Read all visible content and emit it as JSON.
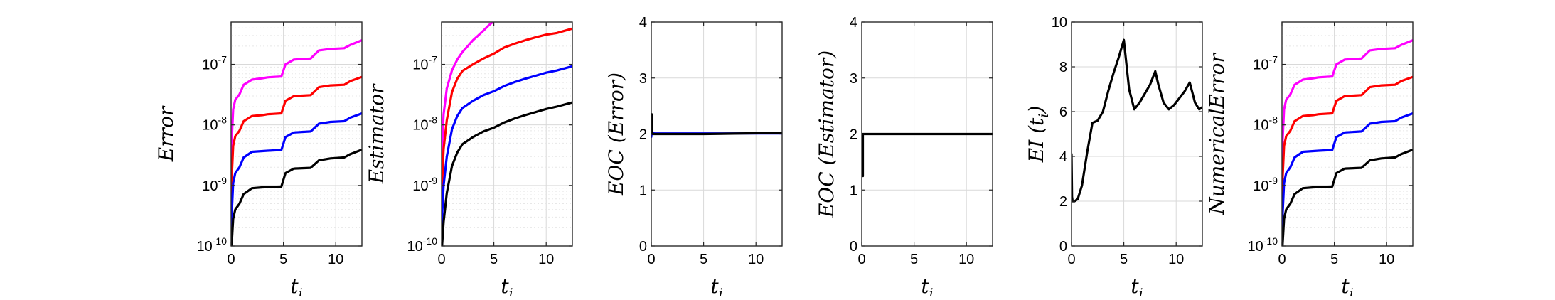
{
  "chart_data": [
    {
      "type": "line",
      "xlabel": "t",
      "xlabel_sub": "i",
      "ylabel": "Error",
      "yscale": "log",
      "xlim": [
        0,
        12.5
      ],
      "ylim": [
        1e-10,
        5e-07
      ],
      "xticks": [
        0,
        5,
        10
      ],
      "yticks": [
        1e-10,
        1e-09,
        1e-08,
        1e-07
      ],
      "ytick_labels": [
        "10-10",
        "10-9",
        "10-8",
        "10-7"
      ],
      "grid": true,
      "series": [
        {
          "color": "#ff00ff",
          "x": [
            0,
            0.05,
            0.2,
            0.4,
            0.8,
            1.2,
            2.0,
            3.0,
            3.5,
            4.8,
            5.2,
            6.0,
            7.6,
            8.4,
            9.5,
            10.8,
            11.4,
            12.5
          ],
          "y": [
            1e-10,
            5e-09,
            1.8e-08,
            2.6e-08,
            3.2e-08,
            4.6e-08,
            5.6e-08,
            5.9e-08,
            6.1e-08,
            6.3e-08,
            1e-07,
            1.2e-07,
            1.25e-07,
            1.7e-07,
            1.8e-07,
            1.85e-07,
            2.1e-07,
            2.5e-07
          ]
        },
        {
          "color": "#ff0000",
          "x": [
            0,
            0.05,
            0.2,
            0.4,
            0.8,
            1.2,
            2.0,
            3.0,
            3.5,
            4.8,
            5.2,
            6.0,
            7.6,
            8.4,
            9.5,
            10.8,
            11.4,
            12.5
          ],
          "y": [
            1e-10,
            1.2e-09,
            4.5e-09,
            6.5e-09,
            8e-09,
            1.15e-08,
            1.4e-08,
            1.45e-08,
            1.5e-08,
            1.55e-08,
            2.5e-08,
            3e-08,
            3.1e-08,
            4.2e-08,
            4.5e-08,
            4.6e-08,
            5.3e-08,
            6.2e-08
          ]
        },
        {
          "color": "#0000ff",
          "x": [
            0,
            0.05,
            0.2,
            0.4,
            0.8,
            1.2,
            2.0,
            3.0,
            3.5,
            4.8,
            5.2,
            6.0,
            7.6,
            8.4,
            9.5,
            10.8,
            11.4,
            12.5
          ],
          "y": [
            1e-10,
            3e-10,
            1.1e-09,
            1.6e-09,
            2e-09,
            2.9e-09,
            3.6e-09,
            3.7e-09,
            3.75e-09,
            3.85e-09,
            6.3e-09,
            7.5e-09,
            7.8e-09,
            1.05e-08,
            1.12e-08,
            1.15e-08,
            1.32e-08,
            1.55e-08
          ]
        },
        {
          "color": "#000000",
          "x": [
            0,
            0.05,
            0.2,
            0.4,
            0.8,
            1.2,
            2.0,
            3.0,
            3.5,
            4.8,
            5.2,
            6.0,
            7.6,
            8.4,
            9.5,
            10.8,
            11.4,
            12.5
          ],
          "y": [
            1e-10,
            1e-10,
            2.8e-10,
            4e-10,
            5e-10,
            7.2e-10,
            9e-10,
            9.3e-10,
            9.4e-10,
            9.6e-10,
            1.6e-09,
            1.9e-09,
            1.95e-09,
            2.6e-09,
            2.8e-09,
            2.9e-09,
            3.3e-09,
            3.9e-09
          ]
        }
      ]
    },
    {
      "type": "line",
      "xlabel": "t",
      "xlabel_sub": "i",
      "ylabel": "Estimator",
      "yscale": "log",
      "xlim": [
        0,
        12.5
      ],
      "ylim": [
        1e-10,
        5e-07
      ],
      "xticks": [
        0,
        5,
        10
      ],
      "yticks": [
        1e-10,
        1e-09,
        1e-08,
        1e-07
      ],
      "ytick_labels": [
        "10-10",
        "10-9",
        "10-8",
        "10-7"
      ],
      "grid": true,
      "series": [
        {
          "color": "#ff00ff",
          "x": [
            0,
            0.05,
            0.2,
            0.5,
            1.0,
            1.5,
            2.0,
            2.5,
            3.0,
            3.5,
            4.0,
            4.5,
            4.9
          ],
          "y": [
            1e-10,
            4e-09,
            1.5e-08,
            4e-08,
            8e-08,
            1.2e-07,
            1.6e-07,
            2e-07,
            2.5e-07,
            3e-07,
            3.6e-07,
            4.4e-07,
            5e-07
          ]
        },
        {
          "color": "#ff0000",
          "x": [
            0,
            0.05,
            0.2,
            0.5,
            1.0,
            1.5,
            2.0,
            3.0,
            4.0,
            5.0,
            6.0,
            7.0,
            8.0,
            9.0,
            10.0,
            11.0,
            12.5
          ],
          "y": [
            1e-10,
            1e-09,
            4e-09,
            1.2e-08,
            3.5e-08,
            5.8e-08,
            7.8e-08,
            1e-07,
            1.25e-07,
            1.5e-07,
            1.9e-07,
            2.2e-07,
            2.5e-07,
            2.8e-07,
            3.1e-07,
            3.3e-07,
            3.9e-07
          ]
        },
        {
          "color": "#0000ff",
          "x": [
            0,
            0.05,
            0.2,
            0.5,
            1.0,
            1.5,
            2.0,
            3.0,
            4.0,
            5.0,
            6.0,
            7.0,
            8.0,
            9.0,
            10.0,
            11.0,
            12.5
          ],
          "y": [
            1e-10,
            3e-10,
            1e-09,
            3e-09,
            8.5e-09,
            1.4e-08,
            1.9e-08,
            2.5e-08,
            3.1e-08,
            3.6e-08,
            4.4e-08,
            5.1e-08,
            5.8e-08,
            6.5e-08,
            7.3e-08,
            7.9e-08,
            9.3e-08
          ]
        },
        {
          "color": "#000000",
          "x": [
            0,
            0.05,
            0.2,
            0.5,
            1.0,
            1.5,
            2.0,
            3.0,
            4.0,
            5.0,
            6.0,
            7.0,
            8.0,
            9.0,
            10.0,
            11.0,
            12.5
          ],
          "y": [
            1e-10,
            1e-10,
            2.5e-10,
            7.5e-10,
            2.1e-09,
            3.5e-09,
            4.8e-09,
            6.3e-09,
            7.8e-09,
            9e-09,
            1.1e-08,
            1.28e-08,
            1.45e-08,
            1.63e-08,
            1.83e-08,
            2e-08,
            2.35e-08
          ]
        }
      ]
    },
    {
      "type": "line",
      "xlabel": "t",
      "xlabel_sub": "i",
      "ylabel": "EOC (Error)",
      "yscale": "linear",
      "xlim": [
        0,
        12.5
      ],
      "ylim": [
        0,
        4
      ],
      "xticks": [
        0,
        5,
        10
      ],
      "yticks": [
        0,
        1,
        2,
        3,
        4
      ],
      "ytick_labels": [
        "0",
        "1",
        "2",
        "3",
        "4"
      ],
      "grid": true,
      "series": [
        {
          "color": "#0000ff",
          "x": [
            0,
            0.05,
            0.15,
            0.3,
            12.5
          ],
          "y": [
            1.95,
            2.05,
            2.02,
            2.01,
            2.01
          ]
        },
        {
          "color": "#000000",
          "x": [
            0,
            0.05,
            0.1,
            0.15,
            0.3,
            1.0,
            5.0,
            12.5
          ],
          "y": [
            2.35,
            2.35,
            2.02,
            2.0,
            2.0,
            2.0,
            2.0,
            2.02
          ]
        }
      ]
    },
    {
      "type": "line",
      "xlabel": "t",
      "xlabel_sub": "i",
      "ylabel": "EOC (Estimator)",
      "yscale": "linear",
      "xlim": [
        0,
        12.5
      ],
      "ylim": [
        0,
        4
      ],
      "xticks": [
        0,
        5,
        10
      ],
      "yticks": [
        0,
        1,
        2,
        3,
        4
      ],
      "ytick_labels": [
        "0",
        "1",
        "2",
        "3",
        "4"
      ],
      "grid": true,
      "series": [
        {
          "color": "#000000",
          "x": [
            0.1,
            0.1,
            0.12,
            0.2,
            1.0,
            12.5
          ],
          "y": [
            1.25,
            2.0,
            2.0,
            2.0,
            2.0,
            2.0
          ]
        }
      ]
    },
    {
      "type": "line",
      "xlabel": "t",
      "xlabel_sub": "i",
      "ylabel": "EI (t",
      "ylabel_sub": "i",
      "ylabel_suffix": ")",
      "yscale": "linear",
      "xlim": [
        0,
        12.5
      ],
      "ylim": [
        0,
        10
      ],
      "xticks": [
        0,
        5,
        10
      ],
      "yticks": [
        0,
        2,
        4,
        6,
        8,
        10
      ],
      "ytick_labels": [
        "0",
        "2",
        "4",
        "6",
        "8",
        "10"
      ],
      "grid": true,
      "series": [
        {
          "color": "#000000",
          "x": [
            0,
            0.05,
            0.1,
            0.3,
            0.6,
            1.0,
            1.5,
            2.0,
            2.5,
            3.0,
            3.5,
            4.0,
            4.5,
            5.0,
            5.5,
            6.0,
            6.5,
            7.0,
            7.5,
            8.0,
            8.3,
            8.8,
            9.3,
            9.8,
            10.3,
            10.8,
            11.3,
            11.8,
            12.2,
            12.5
          ],
          "y": [
            4.1,
            2.2,
            2.0,
            2.0,
            2.1,
            2.7,
            4.2,
            5.5,
            5.6,
            6.0,
            6.9,
            7.7,
            8.4,
            9.2,
            7.0,
            6.1,
            6.4,
            6.8,
            7.2,
            7.8,
            7.2,
            6.4,
            6.1,
            6.3,
            6.6,
            6.9,
            7.3,
            6.4,
            6.1,
            6.2
          ]
        }
      ]
    },
    {
      "type": "line",
      "xlabel": "t",
      "xlabel_sub": "i",
      "ylabel": "NumericalError",
      "yscale": "log",
      "xlim": [
        0,
        12.5
      ],
      "ylim": [
        1e-10,
        5e-07
      ],
      "xticks": [
        0,
        5,
        10
      ],
      "yticks": [
        1e-10,
        1e-09,
        1e-08,
        1e-07
      ],
      "ytick_labels": [
        "10-10",
        "10-9",
        "10-8",
        "10-7"
      ],
      "grid": true,
      "series": [
        {
          "color": "#ff00ff",
          "x": [
            0,
            0.05,
            0.2,
            0.4,
            0.8,
            1.2,
            2.0,
            3.0,
            3.5,
            4.8,
            5.2,
            6.0,
            7.6,
            8.4,
            9.5,
            10.8,
            11.4,
            12.5
          ],
          "y": [
            1e-10,
            5e-09,
            1.8e-08,
            2.6e-08,
            3.2e-08,
            4.6e-08,
            5.6e-08,
            5.9e-08,
            6.1e-08,
            6.3e-08,
            1e-07,
            1.2e-07,
            1.25e-07,
            1.7e-07,
            1.8e-07,
            1.85e-07,
            2.1e-07,
            2.5e-07
          ]
        },
        {
          "color": "#ff0000",
          "x": [
            0,
            0.05,
            0.2,
            0.4,
            0.8,
            1.2,
            2.0,
            3.0,
            3.5,
            4.8,
            5.2,
            6.0,
            7.6,
            8.4,
            9.5,
            10.8,
            11.4,
            12.5
          ],
          "y": [
            1e-10,
            1.2e-09,
            4.5e-09,
            6.5e-09,
            8e-09,
            1.15e-08,
            1.4e-08,
            1.45e-08,
            1.5e-08,
            1.55e-08,
            2.5e-08,
            3e-08,
            3.1e-08,
            4.2e-08,
            4.5e-08,
            4.6e-08,
            5.3e-08,
            6.2e-08
          ]
        },
        {
          "color": "#0000ff",
          "x": [
            0,
            0.05,
            0.2,
            0.4,
            0.8,
            1.2,
            2.0,
            3.0,
            3.5,
            4.8,
            5.2,
            6.0,
            7.6,
            8.4,
            9.5,
            10.8,
            11.4,
            12.5
          ],
          "y": [
            1e-10,
            3e-10,
            1.1e-09,
            1.6e-09,
            2e-09,
            2.9e-09,
            3.6e-09,
            3.7e-09,
            3.75e-09,
            3.85e-09,
            6.3e-09,
            7.5e-09,
            7.8e-09,
            1.05e-08,
            1.12e-08,
            1.15e-08,
            1.32e-08,
            1.55e-08
          ]
        },
        {
          "color": "#000000",
          "x": [
            0,
            0.05,
            0.2,
            0.4,
            0.8,
            1.2,
            2.0,
            3.0,
            3.5,
            4.8,
            5.2,
            6.0,
            7.6,
            8.4,
            9.5,
            10.8,
            11.4,
            12.5
          ],
          "y": [
            1e-10,
            1e-10,
            2.8e-10,
            4e-10,
            5e-10,
            7.2e-10,
            9e-10,
            9.3e-10,
            9.4e-10,
            9.6e-10,
            1.6e-09,
            1.9e-09,
            1.95e-09,
            2.6e-09,
            2.8e-09,
            2.9e-09,
            3.3e-09,
            3.9e-09
          ]
        }
      ]
    }
  ]
}
